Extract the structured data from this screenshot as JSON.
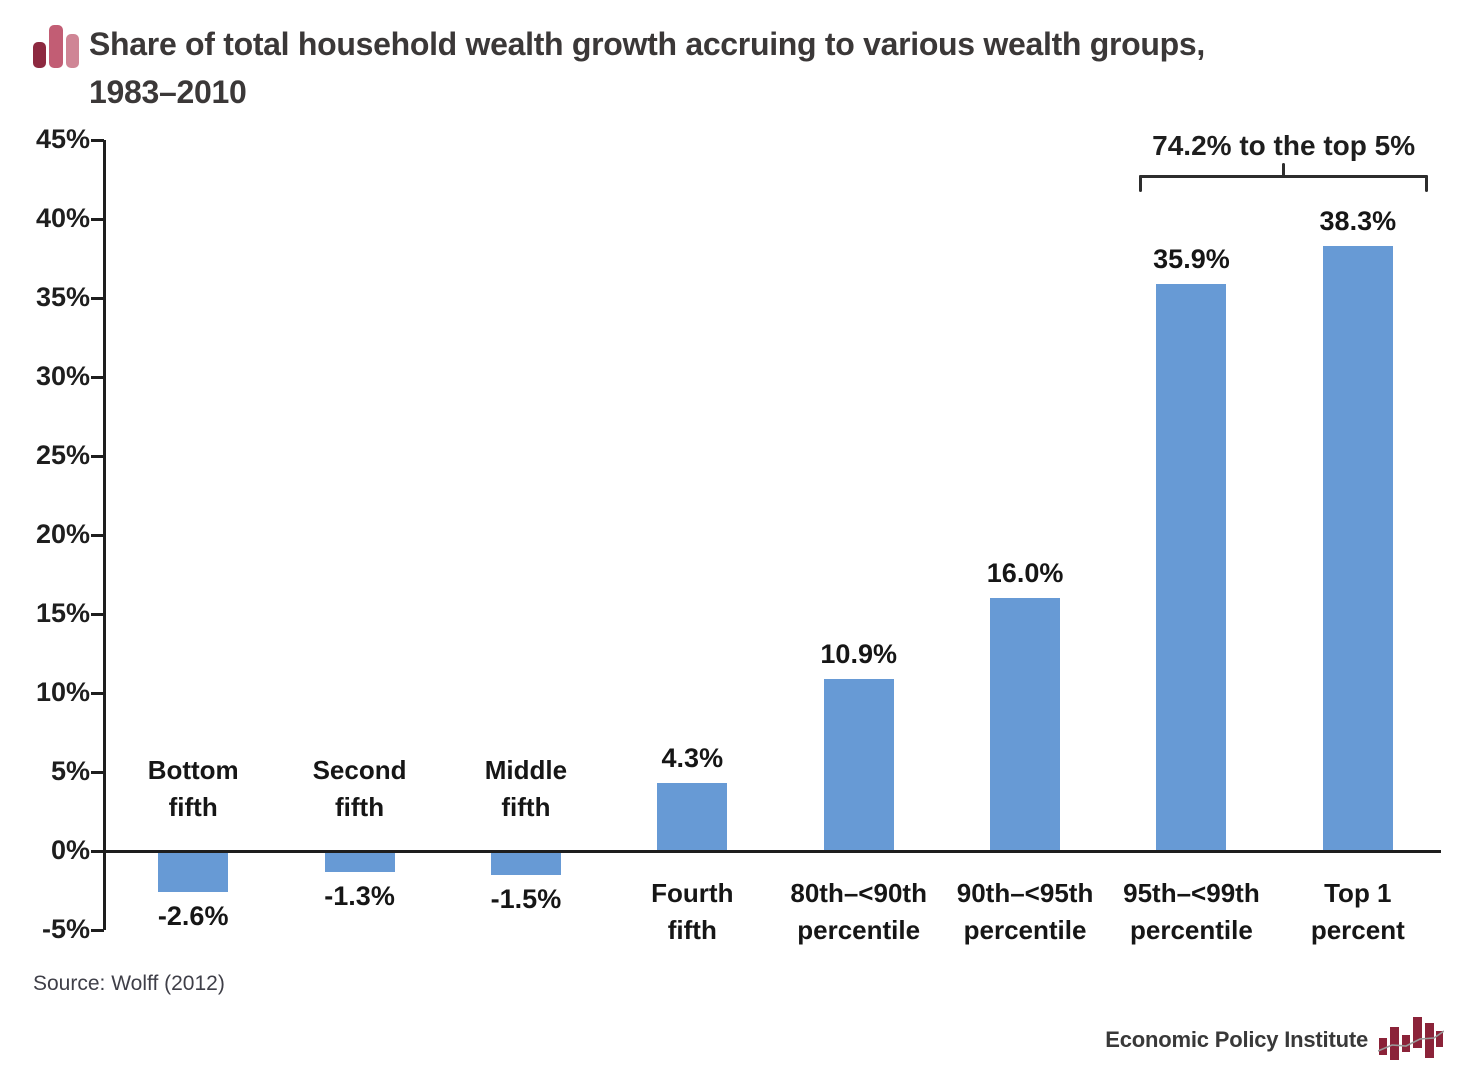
{
  "header": {
    "title_line1": "Share of total household wealth growth accruing to various wealth groups,",
    "title_line2": "1983–2010"
  },
  "chart_data": {
    "type": "bar",
    "title": "Share of total household wealth growth accruing to various wealth groups, 1983–2010",
    "categories": [
      "Bottom\nfifth",
      "Second\nfifth",
      "Middle\nfifth",
      "Fourth\nfifth",
      "80th–<90th\npercentile",
      "90th–<95th\npercentile",
      "95th–<99th\npercentile",
      "Top 1\npercent"
    ],
    "values": [
      -2.6,
      -1.3,
      -1.5,
      4.3,
      10.9,
      16.0,
      35.9,
      38.3
    ],
    "value_labels": [
      "-2.6%",
      "-1.3%",
      "-1.5%",
      "4.3%",
      "10.9%",
      "16.0%",
      "35.9%",
      "38.3%"
    ],
    "ylim": [
      -5,
      45
    ],
    "ytick_step": 5,
    "ytick_labels": [
      "45%",
      "40%",
      "35%",
      "30%",
      "25%",
      "20%",
      "15%",
      "10%",
      "5%",
      "0%",
      "-5%"
    ],
    "grid": false,
    "legend": null,
    "bar_color": "#679ad5",
    "annotation": {
      "text": "74.2% to the top 5%",
      "span": [
        6,
        7
      ]
    }
  },
  "footer": {
    "source": "Source: Wolff (2012)",
    "brand": "Economic Policy Institute"
  },
  "colors": {
    "bar_blue": "#679ad5",
    "axis_black": "#1e1e1e",
    "brand_red": "#8b2339",
    "title_icon_dark": "#8d2940",
    "title_icon_mid": "#c25d74",
    "title_icon_light": "#cf8595"
  }
}
